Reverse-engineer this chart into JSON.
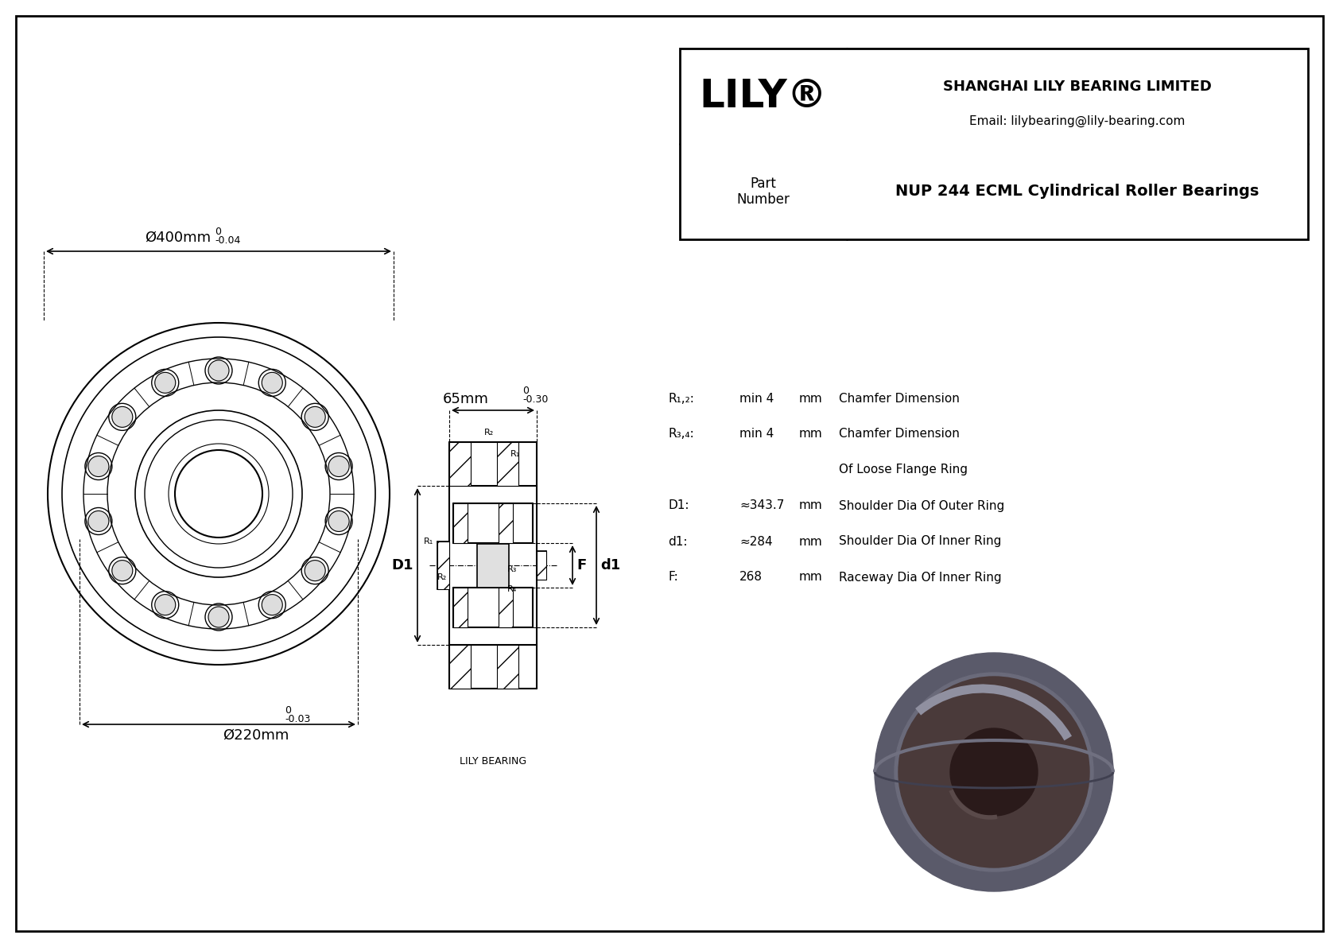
{
  "bg_color": "#ffffff",
  "border_color": "#000000",
  "company_name": "SHANGHAI LILY BEARING LIMITED",
  "company_email": "Email: lilybearing@lily-bearing.com",
  "part_label": "Part\nNumber",
  "part_number": "NUP 244 ECML Cylindrical Roller Bearings",
  "lily_label": "LILY",
  "lily_bearing_label": "LILY BEARING",
  "dim_outer": "Ø400mm",
  "dim_outer_tol": "-0.04",
  "dim_inner": "Ø220mm",
  "dim_inner_tol": "-0.03",
  "dim_width": "65mm",
  "dim_width_tol": "-0.30",
  "photo_outer_color": "#5a5a6a",
  "photo_inner_color": "#6a6a7a",
  "photo_face_color": "#4a3a3a",
  "photo_bore_color": "#2a1a1a",
  "photo_highlight_color": "#9090a0",
  "photo_bore_hl_color": "#5a4a4a",
  "photo_top_arc_color": "#707080",
  "photo_bot_arc_color": "#404050",
  "params": [
    {
      "label": "R₁,₂:",
      "value": "min 4",
      "unit": "mm",
      "desc": "Chamfer Dimension"
    },
    {
      "label": "R₃,₄:",
      "value": "min 4",
      "unit": "mm",
      "desc": "Chamfer Dimension"
    },
    {
      "label": "",
      "value": "",
      "unit": "",
      "desc": "Of Loose Flange Ring"
    },
    {
      "label": "D1:",
      "value": "≈343.7",
      "unit": "mm",
      "desc": "Shoulder Dia Of Outer Ring"
    },
    {
      "label": "d1:",
      "value": "≈284",
      "unit": "mm",
      "desc": "Shoulder Dia Of Inner Ring"
    },
    {
      "label": "F:",
      "value": "268",
      "unit": "mm",
      "desc": "Raceway Dia Of Inner Ring"
    }
  ]
}
